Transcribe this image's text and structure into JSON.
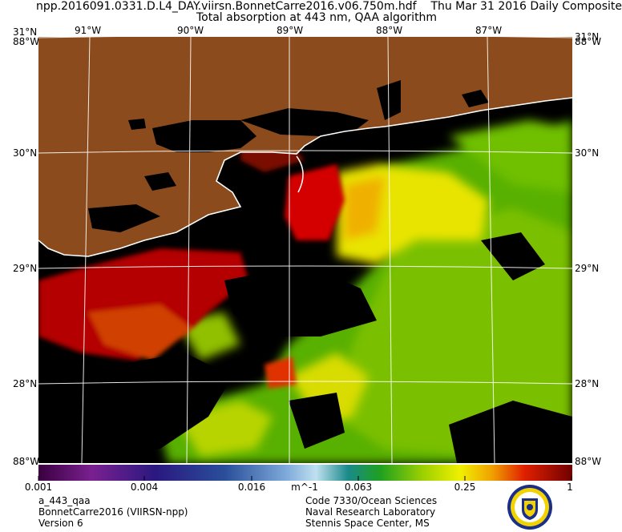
{
  "header": {
    "filename": "npp.2016091.0331.D.L4_DAY.viirsn.BonnetCarre2016.v06.750m.hdf",
    "date": "Thu Mar 31 2016 Daily Composite",
    "subtitle": "Total absorption at 443 nm, QAA algorithm"
  },
  "map": {
    "lat_labels": [
      "31°N",
      "30°N",
      "29°N",
      "28°N"
    ],
    "lon_labels": [
      "91°W",
      "90°W",
      "89°W",
      "88°W",
      "87°W"
    ],
    "corner_labels": {
      "top_left": "88°W",
      "top_right": "88°W",
      "bottom_left": "88°W",
      "bottom_right": "88°W"
    }
  },
  "colorbar": {
    "ticks": [
      "0.001",
      "0.004",
      "0.016",
      "0.063",
      "0.25",
      "1"
    ],
    "unit": "m^-1",
    "scale": "log"
  },
  "footer": {
    "left": [
      "a_443_qaa",
      "BonnetCarre2016 (VIIRSN-npp)",
      "Version 6"
    ],
    "right": [
      "Code 7330/Ocean Sciences",
      "Naval Research Laboratory",
      "Stennis Space Center, MS"
    ]
  },
  "colors": {
    "land": "#8b4b1d",
    "no_data": "#000000",
    "coastline": "#ffffff",
    "high_absorption": "#c00000",
    "mid_absorption": "#f0e000",
    "low_absorption": "#50b000"
  }
}
